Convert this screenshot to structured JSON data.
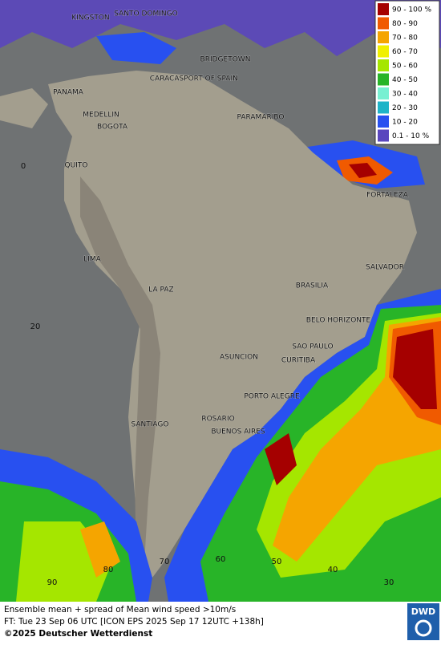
{
  "legend": {
    "items": [
      {
        "label": "90 - 100 %",
        "color": "#a50000"
      },
      {
        "label": "80 - 90",
        "color": "#f05a00"
      },
      {
        "label": "70 - 80",
        "color": "#f5a500"
      },
      {
        "label": "60 - 70",
        "color": "#f0f000"
      },
      {
        "label": "50 - 60",
        "color": "#a5e600"
      },
      {
        "label": "40 - 50",
        "color": "#28b428"
      },
      {
        "label": "30 - 40",
        "color": "#78f0d2"
      },
      {
        "label": "20 - 30",
        "color": "#1eb4c8"
      },
      {
        "label": "10 - 20",
        "color": "#2850f0"
      },
      {
        "label": "0.1 - 10 %",
        "color": "#5a46be"
      }
    ]
  },
  "cities": [
    "KINGSTON",
    "SANTO DOMINGO",
    "BRIDGETOWN",
    "CARACAS",
    "PORT OF SPAIN",
    "PANAMA",
    "MEDELLIN",
    "BOGOTA",
    "PARAMARIBO",
    "QUITO",
    "FORTALEZA",
    "LIMA",
    "SALVADOR",
    "LA PAZ",
    "BRASILIA",
    "BELO HORIZONTE",
    "SAO PAULO",
    "ASUNCION",
    "CURITIBA",
    "PORTO ALEGRE",
    "SANTIAGO",
    "ROSARIO",
    "BUENOS AIRES"
  ],
  "grid_labels": [
    "0",
    "20",
    "90",
    "80",
    "70",
    "60",
    "50",
    "40",
    "30"
  ],
  "caption": {
    "line1": "Ensemble mean + spread of Mean wind speed >10m/s",
    "line2": "FT: Tue 23 Sep 06 UTC [ICON EPS 2025 Sep 17 12UTC +138h]",
    "line3": "©2025 Deutscher Wetterdienst"
  },
  "logo": "DWD"
}
